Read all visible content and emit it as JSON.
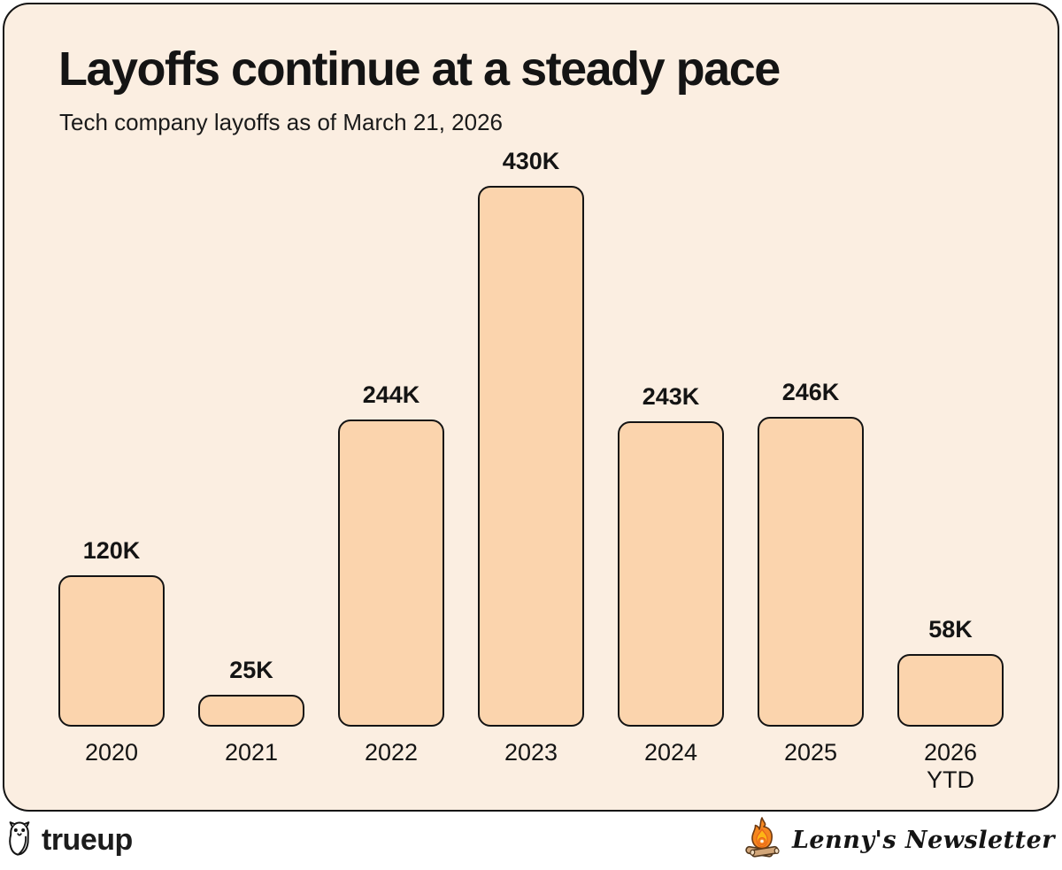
{
  "chart_data": {
    "type": "bar",
    "title": "Layoffs continue at a steady pace",
    "subtitle": "Tech company layoffs as of March 21, 2026",
    "categories": [
      "2020",
      "2021",
      "2022",
      "2023",
      "2024",
      "2025",
      "2026\nYTD"
    ],
    "values": [
      120000,
      25000,
      244000,
      430000,
      243000,
      246000,
      58000
    ],
    "value_labels": [
      "120K",
      "25K",
      "244K",
      "430K",
      "243K",
      "246K",
      "58K"
    ],
    "ylim": [
      0,
      430000
    ],
    "grid": false,
    "legend": "none",
    "bar_color": "#fbd4ad",
    "bar_border_color": "#141414",
    "background_color": "#fbeee1"
  },
  "footer": {
    "left_brand": "trueup",
    "right_brand": "Lenny's Newsletter"
  },
  "colors": {
    "page_bg": "#ffffff",
    "text": "#141414"
  }
}
